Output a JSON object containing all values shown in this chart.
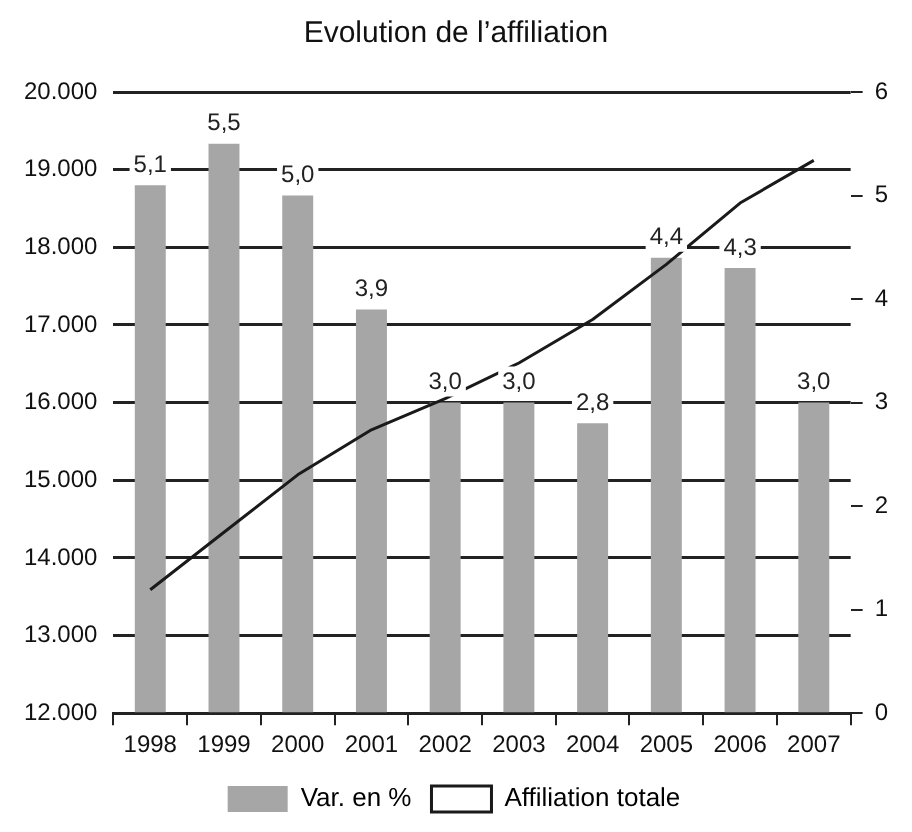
{
  "chart_data": {
    "type": "bar",
    "title": "Evolution de l’affiliation",
    "categories": [
      "1998",
      "1999",
      "2000",
      "2001",
      "2002",
      "2003",
      "2004",
      "2005",
      "2006",
      "2007"
    ],
    "series": [
      {
        "name": "Var. en %",
        "axis": "y2",
        "color": "#a6a6a6",
        "values": [
          5.1,
          5.5,
          5.0,
          3.9,
          3.0,
          3.0,
          2.8,
          4.4,
          4.3,
          3.0
        ],
        "value_labels": [
          "5,1",
          "5,5",
          "5,0",
          "3,9",
          "3,0",
          "3,0",
          "2,8",
          "4,4",
          "4,3",
          "3,0"
        ]
      },
      {
        "name": "Affiliation totale",
        "type": "line",
        "color": "#1a1a1a",
        "values": [
          13590,
          14330,
          15070,
          15650,
          16050,
          16510,
          17070,
          17780,
          18570,
          19120
        ]
      }
    ],
    "ylim": [
      12000,
      20000
    ],
    "yticks": [
      {
        "value": 12000,
        "label": "12.000"
      },
      {
        "value": 13000,
        "label": "13.000"
      },
      {
        "value": 14000,
        "label": "14.000"
      },
      {
        "value": 15000,
        "label": "15.000"
      },
      {
        "value": 16000,
        "label": "16.000"
      },
      {
        "value": 17000,
        "label": "17.000"
      },
      {
        "value": 18000,
        "label": "18.000"
      },
      {
        "value": 19000,
        "label": "19.000"
      },
      {
        "value": 20000,
        "label": "20.000"
      }
    ],
    "y2lim": [
      0,
      6
    ],
    "y2ticks": [
      0,
      1,
      2,
      3,
      4,
      5,
      6
    ],
    "grid": "y",
    "legend": "bottom",
    "marker": "none"
  }
}
